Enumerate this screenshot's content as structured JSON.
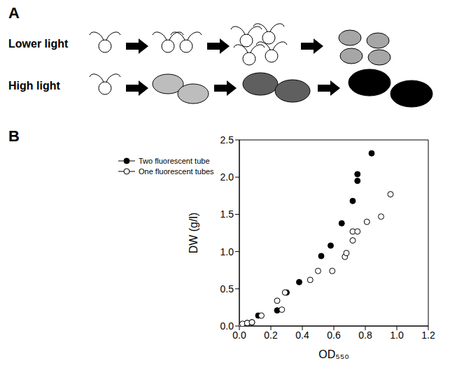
{
  "diagram": {
    "letter": "A",
    "rows": [
      "Lower light",
      "High light"
    ]
  },
  "chart_data": {
    "type": "scatter",
    "letter": "B",
    "x_label": "OD₅₅₀",
    "y_label": "DW (g/l)",
    "xlim": [
      0,
      1.2
    ],
    "xticks": [
      {
        "value": 0,
        "label": "0.0"
      },
      0.2,
      0.4,
      0.6,
      0.8,
      {
        "value": 1,
        "label": "1.0"
      },
      1.2
    ],
    "ylim": [
      0,
      2.5
    ],
    "yticks": [
      {
        "value": 0,
        "label": "0.0"
      },
      0.5,
      {
        "value": 1,
        "label": "1.0"
      },
      1.5,
      {
        "value": 2,
        "label": "2.0"
      },
      2.5
    ],
    "grid": false,
    "legend": "upper left",
    "series": [
      {
        "name": "Two fluorescent tube",
        "color": "#000000",
        "marker": "circle_filled",
        "x": [
          0.02,
          0.05,
          0.08,
          0.12,
          0.24,
          0.3,
          0.38,
          0.52,
          0.58,
          0.65,
          0.72,
          0.75,
          0.75,
          0.84
        ],
        "values": [
          0.02,
          0.04,
          0.05,
          0.14,
          0.21,
          0.45,
          0.59,
          0.94,
          1.08,
          1.38,
          1.68,
          1.95,
          2.04,
          2.32
        ]
      },
      {
        "name": "One fluorescent tubes",
        "color": "#000000",
        "marker": "circle_open",
        "x": [
          0.01,
          0.02,
          0.05,
          0.08,
          0.14,
          0.24,
          0.27,
          0.29,
          0.45,
          0.5,
          0.59,
          0.67,
          0.68,
          0.72,
          0.72,
          0.75,
          0.81,
          0.9,
          0.96
        ],
        "values": [
          0.01,
          0.03,
          0.04,
          0.05,
          0.14,
          0.34,
          0.22,
          0.45,
          0.62,
          0.74,
          0.74,
          0.93,
          0.98,
          1.15,
          1.27,
          1.27,
          1.4,
          1.47,
          1.77
        ]
      }
    ]
  }
}
